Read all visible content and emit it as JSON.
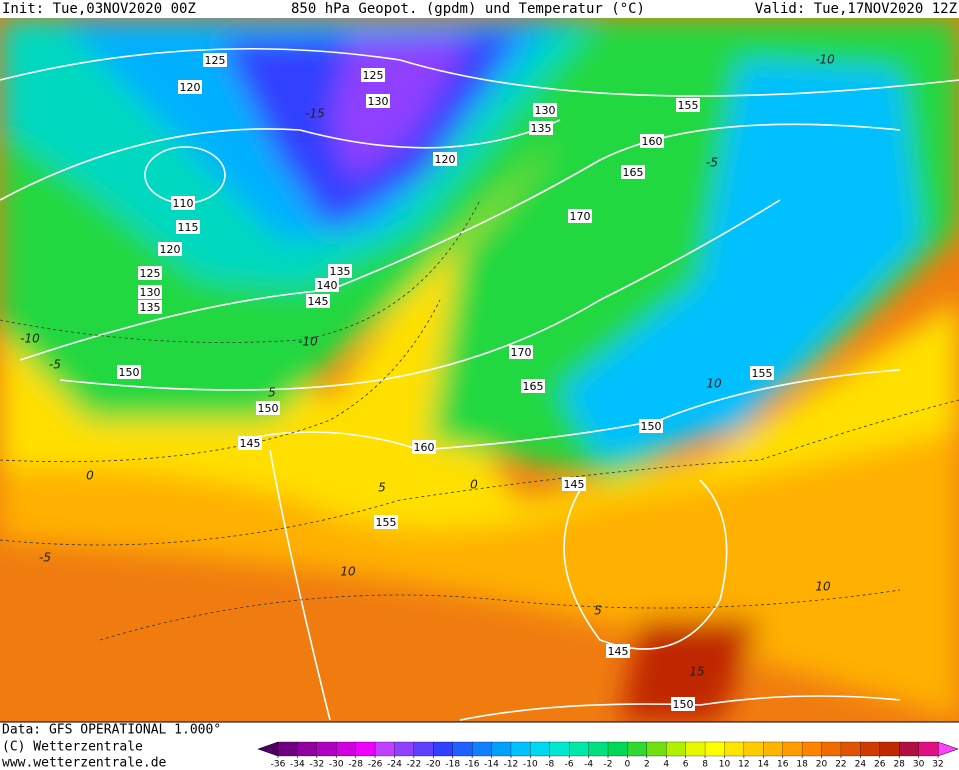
{
  "header": {
    "init": "Init: Tue,03NOV2020 00Z",
    "title": "850 hPa Geopot. (gpdm) und Temperatur (°C)",
    "valid": "Valid: Tue,17NOV2020 12Z"
  },
  "footer": {
    "source": "Data: GFS OPERATIONAL 1.000°",
    "copyright": "(C) Wetterzentrale",
    "url": "www.wetterzentrale.de"
  },
  "colorbar": {
    "ticks": [
      -36,
      -34,
      -32,
      -30,
      -28,
      -26,
      -24,
      -22,
      -20,
      -18,
      -16,
      -14,
      -12,
      -10,
      -8,
      -6,
      -4,
      -2,
      0,
      2,
      4,
      6,
      8,
      10,
      12,
      14,
      16,
      18,
      20,
      22,
      24,
      26,
      28,
      30,
      32
    ],
    "colors": [
      "#500060",
      "#700080",
      "#9000a0",
      "#b000c0",
      "#d000e0",
      "#f000ff",
      "#c040ff",
      "#9040ff",
      "#6040ff",
      "#3040ff",
      "#2060ff",
      "#1080ff",
      "#00a0ff",
      "#00c0ff",
      "#00d8f0",
      "#00e8d0",
      "#00e8a8",
      "#00e080",
      "#00d858",
      "#30d830",
      "#70e010",
      "#b0f000",
      "#e8f800",
      "#ffff00",
      "#ffe400",
      "#ffcc00",
      "#ffb400",
      "#ff9c00",
      "#ff8400",
      "#f06c00",
      "#e05400",
      "#d03c00",
      "#c02800",
      "#b01040",
      "#e01080",
      "#ff40ff"
    ]
  },
  "geopotential_labels": [
    125,
    120,
    125,
    130,
    120,
    130,
    135,
    155,
    160,
    165,
    170,
    110,
    115,
    120,
    125,
    130,
    135,
    135,
    140,
    145,
    150,
    170,
    165,
    155,
    150,
    150,
    145,
    160,
    145,
    155,
    145,
    150
  ],
  "temperature_labels": [
    -5,
    0,
    5,
    5,
    -5,
    10,
    10,
    5,
    15,
    10,
    -5,
    -10,
    -10,
    -10,
    -15,
    0
  ]
}
